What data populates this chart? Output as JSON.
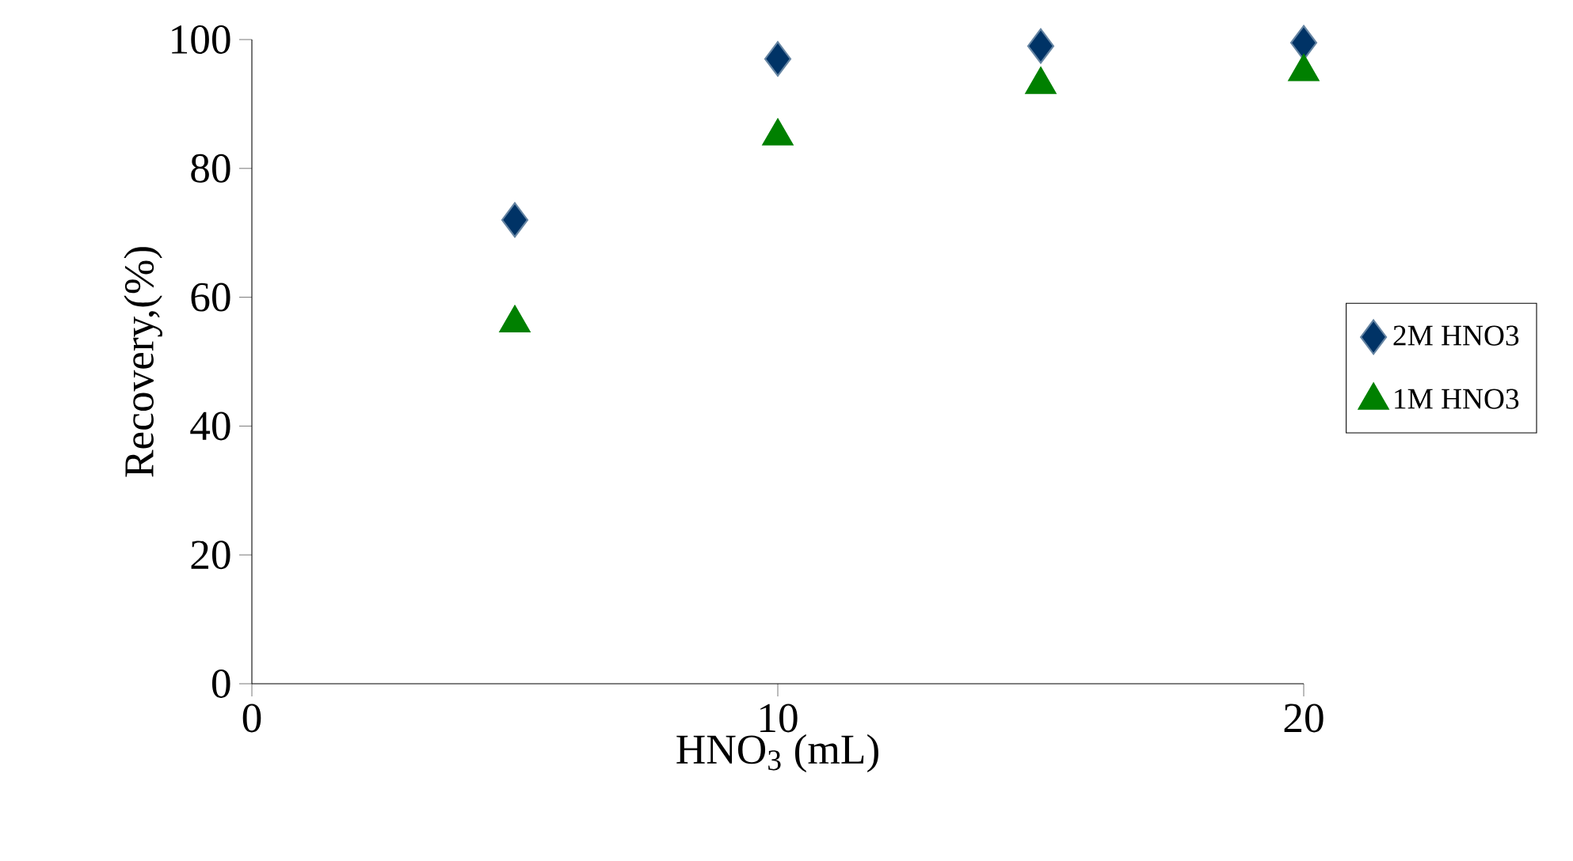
{
  "chart_data": {
    "type": "scatter",
    "xlabel": "HNO$_{3}$ (mL)",
    "ylabel": "Recovery,(%)",
    "x": [
      5,
      10,
      15,
      20
    ],
    "series": [
      {
        "name": "2M HNO3",
        "color": "#003366",
        "marker": "diamond",
        "values": [
          72,
          97,
          99,
          99.5
        ]
      },
      {
        "name": "1M HNO3",
        "color": "#008000",
        "marker": "triangle",
        "values": [
          56,
          85,
          93,
          95
        ]
      }
    ],
    "xlim": [
      0,
      20
    ],
    "xticks": [
      0,
      10,
      20
    ],
    "ylim": [
      0,
      100
    ],
    "yticks": [
      0,
      20,
      40,
      60,
      80,
      100
    ],
    "grid": false,
    "legend": "right"
  }
}
